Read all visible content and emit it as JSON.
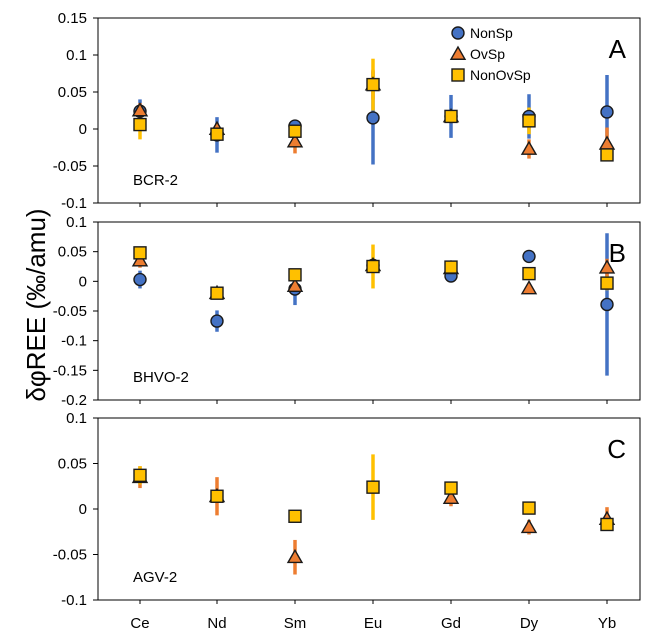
{
  "chart_data": {
    "type": "scatter",
    "categories": [
      "Ce",
      "Nd",
      "Sm",
      "Eu",
      "Gd",
      "Dy",
      "Yb"
    ],
    "ylabel": "δφREE (‰/amu)",
    "legend": {
      "placement": "top-right",
      "entries": [
        {
          "name": "NonSp",
          "marker": "circle",
          "color": "#4472C4",
          "errcolor": "#4472C4"
        },
        {
          "name": "OvSp",
          "marker": "triangle",
          "color": "#ED7D31",
          "errcolor": "#ED7D31"
        },
        {
          "name": "NonOvSp",
          "marker": "square",
          "color": "#FFC000",
          "errcolor": "#FFC000"
        }
      ]
    },
    "grid": false,
    "panels": [
      {
        "letter": "A",
        "sample": "BCR-2",
        "ylim": [
          -0.1,
          0.15
        ],
        "yticks": [
          0.15,
          0.1,
          0.05,
          0,
          -0.05,
          -0.1
        ],
        "ytick_labels": [
          "0.15",
          "0.1",
          "0.05",
          "0",
          "-0.05",
          "-0.1"
        ],
        "series": [
          {
            "name": "NonSp",
            "points": [
              {
                "x": "Ce",
                "y": 0.024,
                "err": 0.016
              },
              {
                "x": "Nd",
                "y": -0.008,
                "err": 0.024
              },
              {
                "x": "Sm",
                "y": 0.004,
                "err": 0.008
              },
              {
                "x": "Eu",
                "y": 0.015,
                "err": 0.063
              },
              {
                "x": "Gd",
                "y": 0.017,
                "err": 0.029
              },
              {
                "x": "Dy",
                "y": 0.017,
                "err": 0.03
              },
              {
                "x": "Yb",
                "y": 0.023,
                "err": 0.05
              }
            ]
          },
          {
            "name": "OvSp",
            "points": [
              {
                "x": "Ce",
                "y": 0.025,
                "err": 0.01
              },
              {
                "x": "Nd",
                "y": 0.0,
                "err": 0.008
              },
              {
                "x": "Sm",
                "y": -0.017,
                "err": 0.016
              },
              {
                "x": "Eu",
                "y": 0.06,
                "err": 0.02
              },
              {
                "x": "Gd",
                "y": 0.017,
                "err": 0.008
              },
              {
                "x": "Dy",
                "y": -0.027,
                "err": 0.013
              },
              {
                "x": "Yb",
                "y": -0.02,
                "err": 0.022
              }
            ]
          },
          {
            "name": "NonOvSp",
            "points": [
              {
                "x": "Ce",
                "y": 0.006,
                "err": 0.02
              },
              {
                "x": "Nd",
                "y": -0.007,
                "err": 0.006
              },
              {
                "x": "Sm",
                "y": -0.003,
                "err": 0.012
              },
              {
                "x": "Eu",
                "y": 0.06,
                "err": 0.035
              },
              {
                "x": "Gd",
                "y": 0.017,
                "err": 0.009
              },
              {
                "x": "Dy",
                "y": 0.011,
                "err": 0.018
              },
              {
                "x": "Yb",
                "y": -0.035,
                "err": 0.008
              }
            ]
          }
        ]
      },
      {
        "letter": "B",
        "sample": "BHVO-2",
        "ylim": [
          -0.2,
          0.1
        ],
        "yticks": [
          0.1,
          0.05,
          0,
          -0.05,
          -0.1,
          -0.15,
          -0.2
        ],
        "ytick_labels": [
          "0.1",
          "0.05",
          "0",
          "-0.05",
          "-0.1",
          "-0.15",
          "-0.2"
        ],
        "series": [
          {
            "name": "NonSp",
            "points": [
              {
                "x": "Ce",
                "y": 0.003,
                "err": 0.015
              },
              {
                "x": "Nd",
                "y": -0.067,
                "err": 0.018
              },
              {
                "x": "Sm",
                "y": -0.013,
                "err": 0.027
              },
              {
                "x": "Eu",
                "y": 0.027,
                "err": 0.008
              },
              {
                "x": "Gd",
                "y": 0.009,
                "err": 0.01
              },
              {
                "x": "Dy",
                "y": 0.042,
                "err": 0.006
              },
              {
                "x": "Yb",
                "y": -0.039,
                "err": 0.12
              }
            ]
          },
          {
            "name": "OvSp",
            "points": [
              {
                "x": "Ce",
                "y": 0.035,
                "err": 0.012
              },
              {
                "x": "Nd",
                "y": -0.02,
                "err": 0.01
              },
              {
                "x": "Sm",
                "y": -0.008,
                "err": 0.008
              },
              {
                "x": "Eu",
                "y": 0.027,
                "err": 0.008
              },
              {
                "x": "Gd",
                "y": 0.022,
                "err": 0.006
              },
              {
                "x": "Dy",
                "y": -0.012,
                "err": 0.004
              },
              {
                "x": "Yb",
                "y": 0.023,
                "err": 0.015
              }
            ]
          },
          {
            "name": "NonOvSp",
            "points": [
              {
                "x": "Ce",
                "y": 0.048,
                "err": 0.008
              },
              {
                "x": "Nd",
                "y": -0.02,
                "err": 0.004
              },
              {
                "x": "Sm",
                "y": 0.011,
                "err": 0.008
              },
              {
                "x": "Eu",
                "y": 0.025,
                "err": 0.037
              },
              {
                "x": "Gd",
                "y": 0.024,
                "err": 0.008
              },
              {
                "x": "Dy",
                "y": 0.013,
                "err": 0.006
              },
              {
                "x": "Yb",
                "y": -0.003,
                "err": 0.012
              }
            ]
          }
        ]
      },
      {
        "letter": "C",
        "sample": "AGV-2",
        "ylim": [
          -0.1,
          0.1
        ],
        "yticks": [
          0.1,
          0.05,
          0,
          -0.05,
          -0.1
        ],
        "ytick_labels": [
          "0.1",
          "0.05",
          "0",
          "-0.05",
          "-0.1"
        ],
        "series": [
          {
            "name": "OvSp",
            "points": [
              {
                "x": "Ce",
                "y": 0.035,
                "err": 0.012
              },
              {
                "x": "Nd",
                "y": 0.014,
                "err": 0.021
              },
              {
                "x": "Sm",
                "y": -0.053,
                "err": 0.019
              },
              {
                "x": "Gd",
                "y": 0.012,
                "err": 0.009
              },
              {
                "x": "Dy",
                "y": -0.02,
                "err": 0.008
              },
              {
                "x": "Yb",
                "y": -0.011,
                "err": 0.013
              }
            ]
          },
          {
            "name": "NonOvSp",
            "points": [
              {
                "x": "Ce",
                "y": 0.037,
                "err": 0.01
              },
              {
                "x": "Nd",
                "y": 0.014,
                "err": 0.004
              },
              {
                "x": "Sm",
                "y": -0.008,
                "err": 0.004
              },
              {
                "x": "Eu",
                "y": 0.024,
                "err": 0.036
              },
              {
                "x": "Gd",
                "y": 0.023,
                "err": 0.004
              },
              {
                "x": "Dy",
                "y": 0.001,
                "err": 0.004
              },
              {
                "x": "Yb",
                "y": -0.017,
                "err": 0.004
              }
            ]
          }
        ]
      }
    ]
  }
}
